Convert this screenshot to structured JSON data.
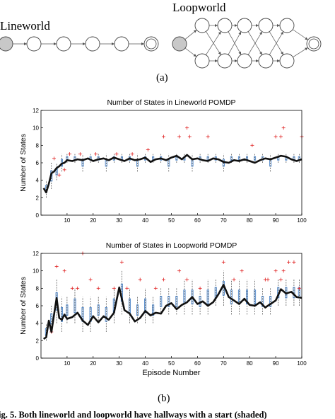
{
  "figure": {
    "diagrams": {
      "lineworld_label": "Lineworld",
      "loopworld_label": "Loopworld"
    },
    "panel_a_label": "(a)",
    "panel_b_label": "(b)",
    "caption_fragment": "ig. 5. Both lineworld and loopworld have hallways with a start (shaded)"
  },
  "chart_data": [
    {
      "type": "line",
      "title": "Number of States in Lineworld POMDP",
      "xlabel": "",
      "ylabel": "Number of States",
      "xlim": [
        0,
        100
      ],
      "ylim": [
        0,
        12
      ],
      "xticks": [
        10,
        20,
        30,
        40,
        50,
        60,
        70,
        80,
        90,
        100
      ],
      "yticks": [
        0,
        2,
        4,
        6,
        8,
        10,
        12
      ],
      "grid": false,
      "series_color": "#111111",
      "box_color": "#3a78c2",
      "outlier_color": "#e02020",
      "x": [
        1,
        2,
        3,
        4,
        5,
        6,
        7,
        8,
        9,
        10,
        12,
        14,
        16,
        18,
        20,
        22,
        24,
        26,
        28,
        30,
        32,
        34,
        36,
        38,
        40,
        42,
        44,
        46,
        48,
        50,
        52,
        54,
        56,
        58,
        60,
        62,
        64,
        66,
        68,
        70,
        72,
        74,
        76,
        78,
        80,
        82,
        84,
        86,
        88,
        90,
        92,
        94,
        96,
        98,
        100
      ],
      "y": [
        3.1,
        2.6,
        3.6,
        4.8,
        5.0,
        5.4,
        5.6,
        5.9,
        6.0,
        6.3,
        6.2,
        6.4,
        6.3,
        6.5,
        6.2,
        6.4,
        6.5,
        6.3,
        6.6,
        6.4,
        6.2,
        6.5,
        6.3,
        6.4,
        6.6,
        6.1,
        6.4,
        6.5,
        6.3,
        6.6,
        6.8,
        6.4,
        6.9,
        6.4,
        6.5,
        6.3,
        6.2,
        6.5,
        6.4,
        6.1,
        6.0,
        6.3,
        6.2,
        6.4,
        6.2,
        6.0,
        6.3,
        6.5,
        6.4,
        6.6,
        6.8,
        6.7,
        6.4,
        6.2,
        6.4
      ],
      "outliers_x": [
        5,
        7,
        9,
        11,
        15,
        21,
        29,
        35,
        41,
        47,
        53,
        56,
        57,
        64,
        81,
        90,
        92,
        93,
        100
      ],
      "outliers_y": [
        6.5,
        4.6,
        5.2,
        7,
        7,
        7,
        7,
        7,
        7.5,
        9,
        9,
        10,
        9,
        9,
        8,
        9,
        9,
        10,
        9
      ],
      "box_x": [
        2,
        4,
        6,
        8,
        10,
        13,
        16,
        19,
        22,
        25,
        28,
        31,
        34,
        37,
        40,
        43,
        46,
        49,
        52,
        55,
        58,
        61,
        64,
        67,
        70,
        73,
        76,
        79,
        82,
        85,
        88,
        91,
        94,
        97,
        99
      ],
      "box_low": [
        2,
        3,
        4,
        5,
        6,
        6,
        5,
        6,
        6,
        5,
        6,
        6,
        6,
        5,
        6,
        6,
        6,
        5,
        6,
        6,
        5,
        6,
        6,
        6,
        5,
        6,
        6,
        6,
        6,
        6,
        5,
        6,
        6,
        6,
        6
      ],
      "box_high": [
        4,
        6,
        6,
        7,
        7,
        7,
        7,
        7,
        7,
        7,
        7,
        7,
        7,
        7,
        7,
        7,
        7,
        7,
        7,
        7,
        7,
        7,
        7,
        7,
        7,
        7,
        7,
        7,
        7,
        7,
        7,
        7,
        7,
        7,
        7
      ]
    },
    {
      "type": "line",
      "title": "Number of States in Loopworld POMDP",
      "xlabel": "Episode Number",
      "ylabel": "Number of States",
      "xlim": [
        0,
        100
      ],
      "ylim": [
        0,
        12
      ],
      "xticks": [
        10,
        20,
        30,
        40,
        50,
        60,
        70,
        80,
        90,
        100
      ],
      "yticks": [
        0,
        2,
        4,
        6,
        8,
        10,
        12
      ],
      "grid": false,
      "series_color": "#111111",
      "box_color": "#3a78c2",
      "outlier_color": "#e02020",
      "x": [
        1,
        2,
        3,
        4,
        5,
        6,
        7,
        8,
        9,
        10,
        12,
        14,
        16,
        18,
        20,
        22,
        24,
        26,
        28,
        30,
        32,
        34,
        36,
        38,
        40,
        42,
        44,
        46,
        48,
        50,
        52,
        54,
        56,
        58,
        60,
        62,
        64,
        66,
        68,
        70,
        72,
        74,
        76,
        78,
        80,
        82,
        84,
        86,
        88,
        90,
        92,
        94,
        96,
        98,
        100
      ],
      "y": [
        2.2,
        2.4,
        4.3,
        3.0,
        5.0,
        6.9,
        4.6,
        4.4,
        5.0,
        4.5,
        4.7,
        5.2,
        4.3,
        3.8,
        4.8,
        4.1,
        4.8,
        4.4,
        5.2,
        8.1,
        5.5,
        5.1,
        4.2,
        4.6,
        5.4,
        4.9,
        5.2,
        5.1,
        6.0,
        6.3,
        5.6,
        6.1,
        6.4,
        7.0,
        6.2,
        6.5,
        6.0,
        6.4,
        7.3,
        8.4,
        7.0,
        6.6,
        6.2,
        6.8,
        6.1,
        6.0,
        6.4,
        5.8,
        6.2,
        6.6,
        7.9,
        7.4,
        7.6,
        7.0,
        6.9
      ],
      "outliers_x": [
        4,
        6,
        9,
        12,
        14,
        16,
        19,
        22,
        28,
        31,
        33,
        38,
        44,
        47,
        53,
        56,
        61,
        70,
        74,
        77,
        86,
        87,
        90,
        92,
        93,
        95,
        97,
        99
      ],
      "outliers_y": [
        3,
        10.5,
        10,
        8,
        8,
        12,
        9,
        8,
        8,
        11,
        8,
        9,
        8,
        9,
        10,
        9,
        8,
        11,
        9,
        10,
        9,
        9,
        10,
        9,
        10,
        11,
        11,
        8
      ],
      "box_x": [
        2,
        4,
        6,
        8,
        10,
        13,
        16,
        19,
        22,
        25,
        28,
        31,
        34,
        37,
        40,
        43,
        46,
        49,
        52,
        55,
        58,
        61,
        64,
        67,
        70,
        73,
        76,
        79,
        82,
        85,
        88,
        91,
        94,
        97,
        99
      ],
      "box_low": [
        2,
        3,
        4,
        3,
        4,
        4,
        3,
        3,
        4,
        3,
        4,
        5,
        4,
        4,
        4,
        4,
        5,
        5,
        5,
        5,
        5,
        5,
        5,
        6,
        6,
        5,
        5,
        5,
        5,
        5,
        5,
        6,
        6,
        6,
        6
      ],
      "box_high": [
        4,
        6,
        9,
        7,
        7,
        8,
        7,
        7,
        7,
        7,
        8,
        10,
        8,
        7,
        8,
        7,
        8,
        8,
        8,
        9,
        9,
        8,
        9,
        9,
        10,
        9,
        9,
        9,
        9,
        8,
        8,
        9,
        9,
        9,
        9
      ]
    }
  ]
}
